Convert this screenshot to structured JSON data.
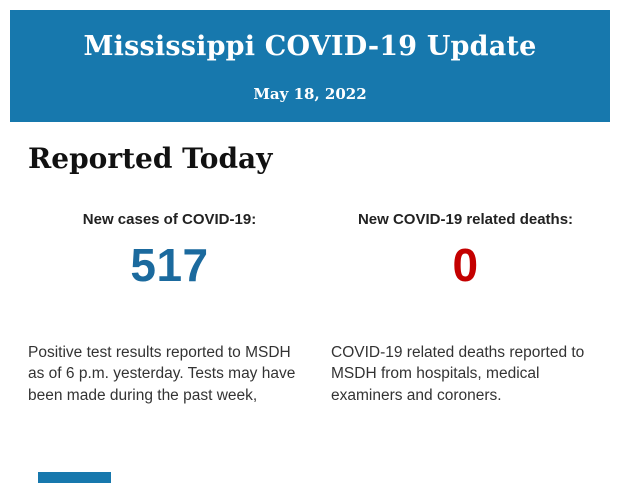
{
  "header": {
    "title": "Mississippi COVID-19 Update",
    "date": "May 18, 2022"
  },
  "main": {
    "section_title": "Reported Today",
    "stats": [
      {
        "label": "New cases of COVID-19:",
        "value": "517",
        "description": "Positive test results reported to MSDH as of 6 p.m. yesterday. Tests may have been made during the past week,"
      },
      {
        "label": "New COVID-19 related deaths:",
        "value": "0",
        "description": "COVID-19 related deaths reported to MSDH from hospitals, medical examiners and coroners."
      }
    ]
  },
  "colors": {
    "header_bg": "#1778ad",
    "cases_value": "#1b6a9e",
    "deaths_value": "#c40000",
    "label_text": "#222222",
    "body_text": "#333333",
    "footer_bar": "#1778ad"
  }
}
